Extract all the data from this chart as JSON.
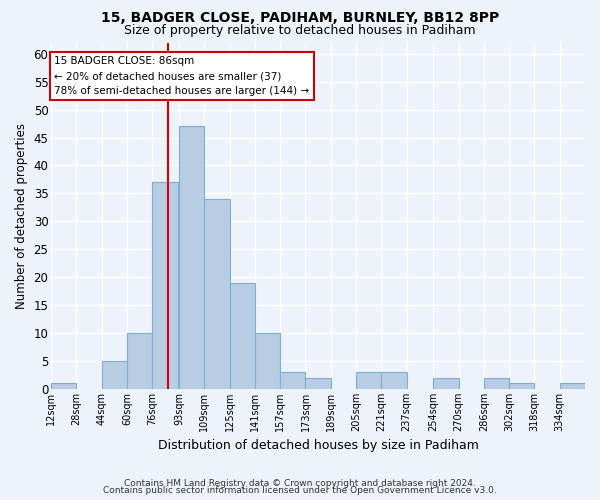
{
  "title": "15, BADGER CLOSE, PADIHAM, BURNLEY, BB12 8PP",
  "subtitle": "Size of property relative to detached houses in Padiham",
  "xlabel": "Distribution of detached houses by size in Padiham",
  "ylabel": "Number of detached properties",
  "bin_left_edges": [
    12,
    28,
    44,
    60,
    76,
    93,
    109,
    125,
    141,
    157,
    173,
    189,
    205,
    221,
    237,
    254,
    270,
    286,
    302,
    318,
    334
  ],
  "bin_labels": [
    "12sqm",
    "28sqm",
    "44sqm",
    "60sqm",
    "76sqm",
    "93sqm",
    "109sqm",
    "125sqm",
    "141sqm",
    "157sqm",
    "173sqm",
    "189sqm",
    "205sqm",
    "221sqm",
    "237sqm",
    "254sqm",
    "270sqm",
    "286sqm",
    "302sqm",
    "318sqm",
    "334sqm"
  ],
  "counts": [
    1,
    0,
    5,
    10,
    37,
    47,
    34,
    19,
    10,
    3,
    2,
    0,
    3,
    3,
    0,
    2,
    0,
    2,
    1,
    0,
    1
  ],
  "bin_width": 16,
  "bar_color": "#b8cce4",
  "bar_edge_color": "#7bafd4",
  "property_line_x": 86,
  "property_line_color": "#cc0000",
  "annotation_text": "15 BADGER CLOSE: 86sqm\n← 20% of detached houses are smaller (37)\n78% of semi-detached houses are larger (144) →",
  "annotation_box_color": "#ffffff",
  "annotation_box_edge_color": "#cc0000",
  "xlim_left": 12,
  "xlim_right": 350,
  "ylim": [
    0,
    62
  ],
  "yticks": [
    0,
    5,
    10,
    15,
    20,
    25,
    30,
    35,
    40,
    45,
    50,
    55,
    60
  ],
  "background_color": "#eef2fa",
  "grid_color": "#ffffff",
  "footer_line1": "Contains HM Land Registry data © Crown copyright and database right 2024.",
  "footer_line2": "Contains public sector information licensed under the Open Government Licence v3.0."
}
